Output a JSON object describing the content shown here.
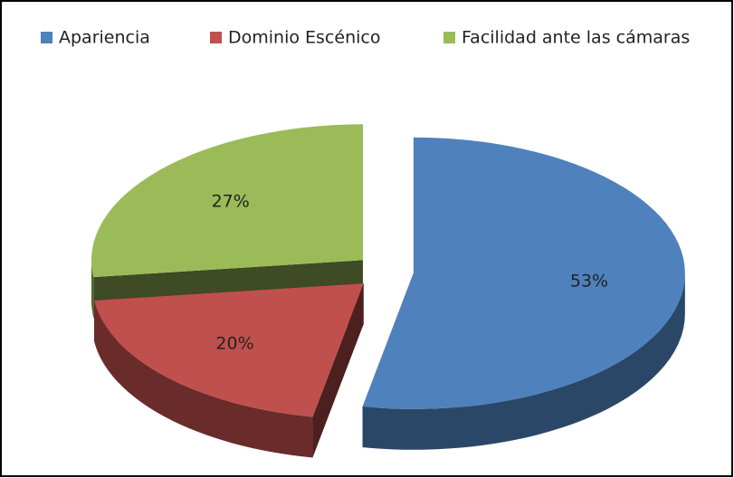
{
  "chart_data": {
    "type": "pie",
    "categories": [
      "Apariencia",
      "Dominio Escénico",
      "Facilidad ante las cámaras"
    ],
    "values": [
      53,
      20,
      27
    ],
    "value_labels": [
      "53%",
      "20%",
      "27%"
    ],
    "colors": [
      "#4f81bd",
      "#c0504d",
      "#9bbb59"
    ],
    "legend": "top"
  }
}
